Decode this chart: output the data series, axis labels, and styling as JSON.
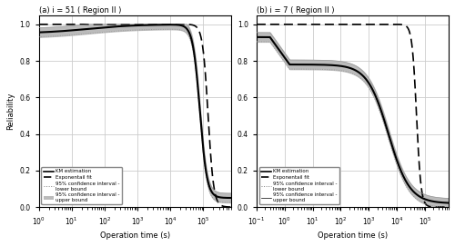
{
  "title_a": "(a) i = 51 ( Region II )",
  "title_b": "(b) i = 7 ( Region II )",
  "xlabel": "Operation time (s)",
  "ylabel": "Reliability",
  "ylim": [
    0,
    1.05
  ],
  "xlim_a": [
    1.0,
    700000.0
  ],
  "xlim_b": [
    0.1,
    700000.0
  ],
  "legend_labels_a": [
    "KM estimation",
    "Exponentail fit",
    "95% confidence interval -\nlower bound",
    "95% confidence interval -\nupper bound"
  ],
  "legend_labels_b": [
    "KM estimation",
    "Exponentail fit",
    "95% confidence interval -\nlower bound",
    "95% confidence interval -\nupper bound"
  ],
  "km_color": "#000000",
  "exp_color": "#000000",
  "ci_line_color": "#999999",
  "fill_color": "#bbbbbb",
  "background": "#ffffff",
  "grid_color": "#cccccc"
}
